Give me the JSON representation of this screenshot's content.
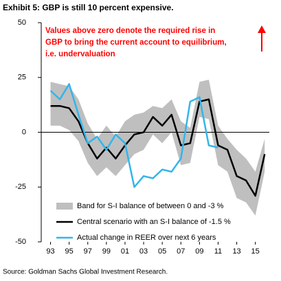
{
  "chart_data": {
    "type": "line",
    "title": "Exhibit 5: GBP is still 10 percent expensive.",
    "annotation": [
      "Values above zero denote the required rise in",
      "GBP to bring the current account to equilibrium,",
      "i.e. undervaluation"
    ],
    "source": "Source: Goldman Sachs Global Investment Research.",
    "x": [
      1993,
      1994,
      1995,
      1996,
      1997,
      1998,
      1999,
      2000,
      2001,
      2002,
      2003,
      2004,
      2005,
      2006,
      2007,
      2008,
      2009,
      2010,
      2011,
      2012,
      2013,
      2014,
      2015,
      2016
    ],
    "xlim": [
      1992,
      2016.5
    ],
    "xticks": [
      {
        "value": 1993,
        "label": "93"
      },
      {
        "value": 1995,
        "label": "95"
      },
      {
        "value": 1997,
        "label": "97"
      },
      {
        "value": 1999,
        "label": "99"
      },
      {
        "value": 2001,
        "label": "01"
      },
      {
        "value": 2003,
        "label": "03"
      },
      {
        "value": 2005,
        "label": "05"
      },
      {
        "value": 2007,
        "label": "07"
      },
      {
        "value": 2009,
        "label": "09"
      },
      {
        "value": 2011,
        "label": "11"
      },
      {
        "value": 2013,
        "label": "13"
      },
      {
        "value": 2015,
        "label": "15"
      }
    ],
    "ylim": [
      -50,
      50
    ],
    "yticks": [
      -50,
      -25,
      0,
      25,
      50
    ],
    "band": {
      "name": "Band for S-I balance of between 0 and -3 %",
      "color": "#bfbfbf",
      "upper": [
        23,
        22,
        21,
        15,
        4,
        -3,
        3,
        -2,
        5,
        8,
        9,
        12,
        11,
        15,
        5,
        2,
        23,
        24,
        3,
        -3,
        -8,
        -12,
        -18,
        -3
      ],
      "lower": [
        3,
        3,
        1,
        -4,
        -14,
        -20,
        -16,
        -20,
        -15,
        -10,
        -8,
        -1,
        -5,
        0,
        -15,
        -14,
        7,
        6,
        -15,
        -18,
        -30,
        -32,
        -38,
        -18
      ]
    },
    "series": [
      {
        "name": "Central scenario with an S-I balance of -1.5 %",
        "color": "#000000",
        "values": [
          12,
          12,
          11,
          5,
          -5,
          -12,
          -7,
          -12,
          -6,
          -1,
          0,
          7,
          3,
          8,
          -6,
          -5,
          14,
          15,
          -6,
          -8,
          -20,
          -22,
          -29,
          -10
        ]
      },
      {
        "name": "Actual change in REER over next 6 years",
        "color": "#33b5ea",
        "values": [
          19,
          15,
          22,
          8,
          -5,
          -2,
          -8,
          -1,
          -5,
          -25,
          -20,
          -21,
          -17,
          -18,
          -12,
          14,
          16,
          -6,
          -7,
          null,
          null,
          null,
          null,
          null
        ]
      }
    ]
  }
}
